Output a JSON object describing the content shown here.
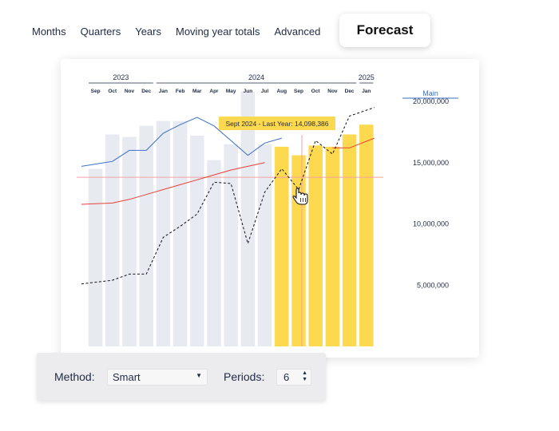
{
  "nav": {
    "tabs": [
      "Months",
      "Quarters",
      "Years",
      "Moving year totals",
      "Advanced"
    ],
    "active_tab": "Forecast"
  },
  "panel": {
    "method_label": "Method:",
    "method_value": "Smart",
    "periods_label": "Periods:",
    "periods_value": "6"
  },
  "chart_data": {
    "type": "bar",
    "year_labels": [
      "2023",
      "2024",
      "2025"
    ],
    "categories": [
      "Sep",
      "Oct",
      "Nov",
      "Dec",
      "Jan",
      "Feb",
      "Mar",
      "Apr",
      "May",
      "Jun",
      "Jul",
      "Aug",
      "Sep",
      "Oct",
      "Nov",
      "Dec",
      "Jan"
    ],
    "series": [
      {
        "role": "actual_bars",
        "values": [
          14500000,
          17300000,
          17100000,
          18000000,
          18400000,
          18400000,
          17200000,
          15200000,
          16500000,
          20800000,
          16500000,
          null,
          null,
          null,
          null,
          null,
          null
        ],
        "color": "#e8eaf2"
      },
      {
        "role": "forecast_bars",
        "values": [
          null,
          null,
          null,
          null,
          null,
          null,
          null,
          null,
          null,
          null,
          null,
          16300000,
          15600000,
          16400000,
          16300000,
          17300000,
          18100000
        ],
        "color": "#fdd94f"
      },
      {
        "role": "blue_line",
        "values": [
          14700000,
          15100000,
          16000000,
          16000000,
          17400000,
          18100000,
          18700000,
          18000000,
          16800000,
          15600000,
          16600000,
          17000000,
          null,
          null,
          null,
          null,
          null
        ],
        "color": "#3a6fc4"
      },
      {
        "role": "red_line",
        "values": [
          11600000,
          11700000,
          12000000,
          12400000,
          12800000,
          13200000,
          13600000,
          14000000,
          14400000,
          14700000,
          15000000,
          null,
          null,
          null,
          16200000,
          16200000,
          17000000
        ],
        "color": "#e8403a"
      },
      {
        "role": "dashed_line",
        "values": [
          5100000,
          5400000,
          5900000,
          5900000,
          8900000,
          9800000,
          10800000,
          13400000,
          13300000,
          8400000,
          12600000,
          14500000,
          12800000,
          16800000,
          15700000,
          18800000,
          19500000
        ],
        "color": "#111111"
      }
    ],
    "reference_line": 13800000,
    "tooltip": "Sept 2024 - Last Year: 14,098,386",
    "axis_title": "Main",
    "yticks": [
      20000000,
      15000000,
      10000000,
      5000000
    ],
    "ytick_labels": [
      "20,000,000",
      "15,000,000",
      "10,000,000",
      "5,000,000"
    ],
    "ylim": [
      0,
      21500000
    ]
  }
}
